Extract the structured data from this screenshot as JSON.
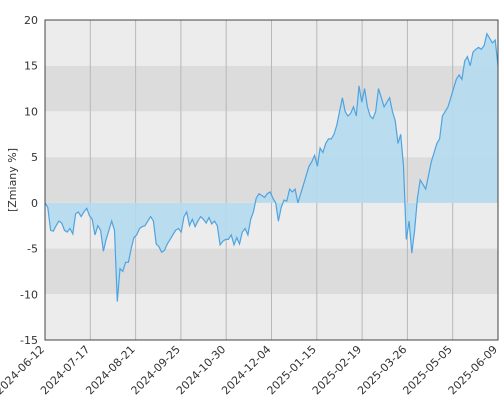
{
  "chart_data": {
    "type": "area",
    "title": "",
    "xlabel": "",
    "ylabel": "[Zmiany %]",
    "ylim": [
      -15,
      20
    ],
    "yticks": [
      20,
      15,
      10,
      5,
      0,
      -5,
      -10,
      -15
    ],
    "xticks": [
      "2024-06-12",
      "2024-07-17",
      "2024-08-21",
      "2024-09-25",
      "2024-10-30",
      "2024-12-04",
      "2025-01-15",
      "2025-02-19",
      "2025-03-26",
      "2025-05-05",
      "2025-06-09"
    ],
    "grid": true,
    "colors": {
      "line": "#4fa3e0",
      "fill_pos": "#b4dcef",
      "fill_neg": "#b4dcef",
      "band_dark": "#dcdcdc",
      "band_light": "#ececec"
    },
    "series": [
      {
        "values": [
          [
            0,
            0.0
          ],
          [
            0.5,
            -0.5
          ],
          [
            1,
            -3.0
          ],
          [
            1.5,
            -3.1
          ],
          [
            2,
            -2.5
          ],
          [
            2.5,
            -2.0
          ],
          [
            3,
            -2.2
          ],
          [
            3.5,
            -3.0
          ],
          [
            4,
            -3.2
          ],
          [
            4.5,
            -2.8
          ],
          [
            5,
            -3.4
          ],
          [
            5.5,
            -1.2
          ],
          [
            6,
            -1.0
          ],
          [
            6.5,
            -1.5
          ],
          [
            7,
            -1.0
          ],
          [
            7.5,
            -0.6
          ],
          [
            8,
            -1.4
          ],
          [
            8.5,
            -1.8
          ],
          [
            9,
            -3.5
          ],
          [
            9.5,
            -2.5
          ],
          [
            10,
            -3.0
          ],
          [
            10.5,
            -5.3
          ],
          [
            11,
            -4.0
          ],
          [
            11.5,
            -3.0
          ],
          [
            12,
            -2.0
          ],
          [
            12.5,
            -3.0
          ],
          [
            13,
            -10.8
          ],
          [
            13.5,
            -7.2
          ],
          [
            14,
            -7.5
          ],
          [
            14.5,
            -6.5
          ],
          [
            15,
            -6.5
          ],
          [
            15.5,
            -5.0
          ],
          [
            16,
            -3.8
          ],
          [
            16.5,
            -3.5
          ],
          [
            17,
            -2.8
          ],
          [
            17.5,
            -2.6
          ],
          [
            18,
            -2.5
          ],
          [
            18.5,
            -2.0
          ],
          [
            19,
            -1.5
          ],
          [
            19.5,
            -2.0
          ],
          [
            20,
            -4.5
          ],
          [
            20.5,
            -4.8
          ],
          [
            21,
            -5.4
          ],
          [
            21.5,
            -5.2
          ],
          [
            22,
            -4.5
          ],
          [
            22.5,
            -4.0
          ],
          [
            23,
            -3.5
          ],
          [
            23.5,
            -3.0
          ],
          [
            24,
            -2.8
          ],
          [
            24.5,
            -3.2
          ],
          [
            25,
            -1.5
          ],
          [
            25.5,
            -1.0
          ],
          [
            26,
            -2.5
          ],
          [
            26.5,
            -1.8
          ],
          [
            27,
            -2.6
          ],
          [
            27.5,
            -2.0
          ],
          [
            28,
            -1.5
          ],
          [
            28.5,
            -1.8
          ],
          [
            29,
            -2.2
          ],
          [
            29.5,
            -1.6
          ],
          [
            30,
            -2.3
          ],
          [
            30.5,
            -2.0
          ],
          [
            31,
            -2.5
          ],
          [
            31.5,
            -4.6
          ],
          [
            32,
            -4.2
          ],
          [
            32.5,
            -4.0
          ],
          [
            33,
            -4.0
          ],
          [
            33.5,
            -3.5
          ],
          [
            34,
            -4.6
          ],
          [
            34.5,
            -3.8
          ],
          [
            35,
            -4.5
          ],
          [
            35.5,
            -3.2
          ],
          [
            36,
            -2.8
          ],
          [
            36.5,
            -3.5
          ],
          [
            37,
            -1.8
          ],
          [
            37.5,
            -1.0
          ],
          [
            38,
            0.5
          ],
          [
            38.5,
            1.0
          ],
          [
            39,
            0.8
          ],
          [
            39.5,
            0.6
          ],
          [
            40,
            1.0
          ],
          [
            40.5,
            1.2
          ],
          [
            41,
            0.5
          ],
          [
            41.5,
            0.0
          ],
          [
            42,
            -2.0
          ],
          [
            42.5,
            -0.5
          ],
          [
            43,
            0.3
          ],
          [
            43.5,
            0.2
          ],
          [
            44,
            1.5
          ],
          [
            44.5,
            1.2
          ],
          [
            45,
            1.5
          ],
          [
            45.5,
            0.0
          ],
          [
            46,
            1.0
          ],
          [
            46.5,
            2.0
          ],
          [
            47,
            3.0
          ],
          [
            47.5,
            4.0
          ],
          [
            48,
            4.5
          ],
          [
            48.5,
            5.2
          ],
          [
            49,
            4.0
          ],
          [
            49.5,
            6.0
          ],
          [
            50,
            5.5
          ],
          [
            50.5,
            6.5
          ],
          [
            51,
            7.0
          ],
          [
            51.5,
            7.0
          ],
          [
            52,
            7.5
          ],
          [
            52.5,
            8.5
          ],
          [
            53,
            10.0
          ],
          [
            53.5,
            11.5
          ],
          [
            54,
            10.0
          ],
          [
            54.5,
            9.5
          ],
          [
            55,
            9.8
          ],
          [
            55.5,
            10.5
          ],
          [
            56,
            9.5
          ],
          [
            56.5,
            12.8
          ],
          [
            57,
            11.0
          ],
          [
            57.5,
            12.5
          ],
          [
            58,
            10.5
          ],
          [
            58.5,
            9.5
          ],
          [
            59,
            9.2
          ],
          [
            59.5,
            10.0
          ],
          [
            60,
            12.5
          ],
          [
            60.5,
            11.5
          ],
          [
            61,
            10.5
          ],
          [
            61.5,
            11.0
          ],
          [
            62,
            11.5
          ],
          [
            62.5,
            10.0
          ],
          [
            63,
            9.0
          ],
          [
            63.5,
            6.5
          ],
          [
            64,
            7.5
          ],
          [
            64.5,
            4.0
          ],
          [
            65,
            -4.0
          ],
          [
            65.5,
            -2.0
          ],
          [
            66,
            -5.5
          ],
          [
            66.5,
            -3.0
          ],
          [
            67,
            0.5
          ],
          [
            67.5,
            2.5
          ],
          [
            68,
            2.0
          ],
          [
            68.5,
            1.5
          ],
          [
            69,
            3.0
          ],
          [
            69.5,
            4.5
          ],
          [
            70,
            5.5
          ],
          [
            70.5,
            6.5
          ],
          [
            71,
            7.0
          ],
          [
            71.5,
            9.5
          ],
          [
            72,
            10.0
          ],
          [
            72.5,
            10.5
          ],
          [
            73,
            11.5
          ],
          [
            73.5,
            12.5
          ],
          [
            74,
            13.5
          ],
          [
            74.5,
            14.0
          ],
          [
            75,
            13.5
          ],
          [
            75.5,
            15.5
          ],
          [
            76,
            16.0
          ],
          [
            76.5,
            15.0
          ],
          [
            77,
            16.5
          ],
          [
            77.5,
            16.8
          ],
          [
            78,
            17.0
          ],
          [
            78.5,
            16.8
          ],
          [
            79,
            17.2
          ],
          [
            79.5,
            18.5
          ],
          [
            80,
            18.0
          ],
          [
            80.5,
            17.5
          ],
          [
            81,
            17.8
          ],
          [
            81.5,
            15.0
          ]
        ]
      }
    ]
  }
}
